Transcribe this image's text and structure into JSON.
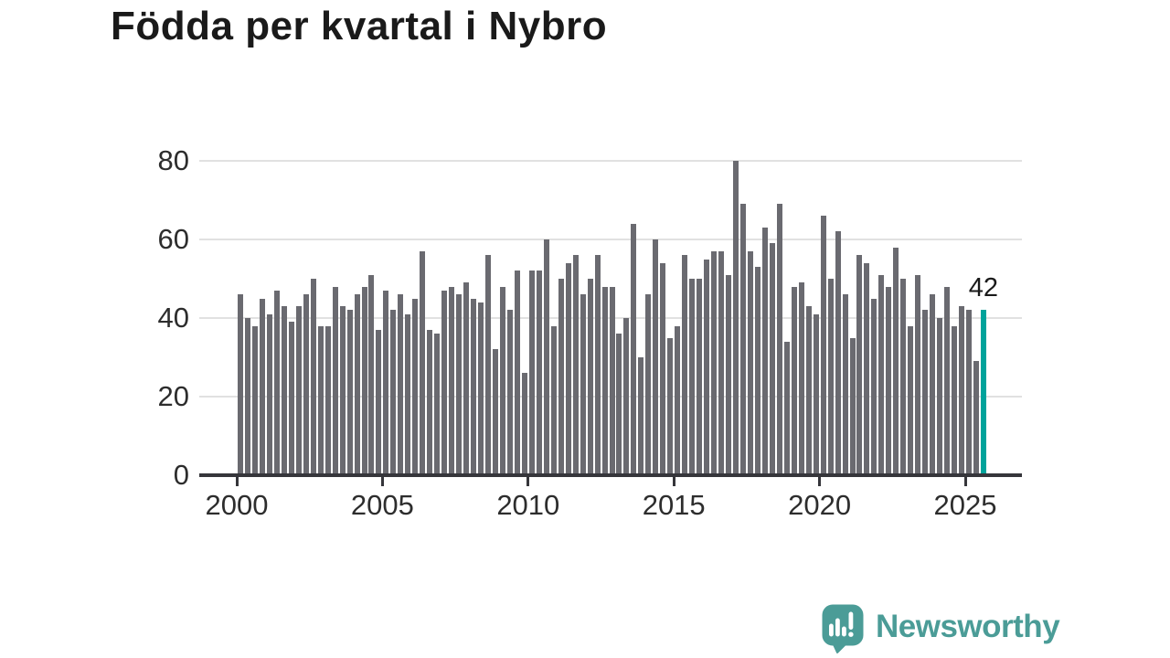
{
  "title": "Födda per kvartal i Nybro",
  "annotation": {
    "last_value_label": "42"
  },
  "branding": {
    "name": "Newsworthy"
  },
  "colors": {
    "background": "#ffffff",
    "bar": "#6a6a70",
    "highlight": "#00a39b",
    "axis": "#36363b",
    "gridline": "#e1e1e1",
    "tick_text": "#2d2d2d",
    "title_text": "#1a1a1a",
    "annotation_text": "#1a1a1a",
    "brand": "#4b9c97"
  },
  "chart_data": {
    "type": "bar",
    "title": "Födda per kvartal i Nybro",
    "frequency": "quarterly",
    "x_start": "2000-Q1",
    "x_end": "2025-Q3",
    "xlabel": "",
    "ylabel": "",
    "ylim": [
      0,
      80
    ],
    "grid": true,
    "legend": false,
    "yticks": [
      0,
      20,
      40,
      60,
      80
    ],
    "xticks": [
      2000,
      2005,
      2010,
      2015,
      2020,
      2025
    ],
    "highlight_index": 102,
    "highlight_label": "42",
    "values": [
      46,
      40,
      38,
      45,
      41,
      47,
      43,
      39,
      43,
      46,
      50,
      38,
      38,
      48,
      43,
      42,
      46,
      48,
      51,
      37,
      47,
      42,
      46,
      41,
      45,
      57,
      37,
      36,
      47,
      48,
      46,
      49,
      45,
      44,
      56,
      32,
      48,
      42,
      52,
      26,
      52,
      52,
      60,
      38,
      50,
      54,
      56,
      46,
      50,
      56,
      48,
      48,
      36,
      40,
      64,
      30,
      46,
      60,
      54,
      35,
      38,
      56,
      50,
      50,
      55,
      57,
      57,
      51,
      80,
      69,
      57,
      53,
      63,
      59,
      69,
      34,
      48,
      49,
      43,
      41,
      66,
      50,
      62,
      46,
      35,
      56,
      54,
      45,
      51,
      48,
      58,
      50,
      38,
      51,
      42,
      46,
      40,
      48,
      38,
      43,
      42,
      29,
      42
    ]
  }
}
